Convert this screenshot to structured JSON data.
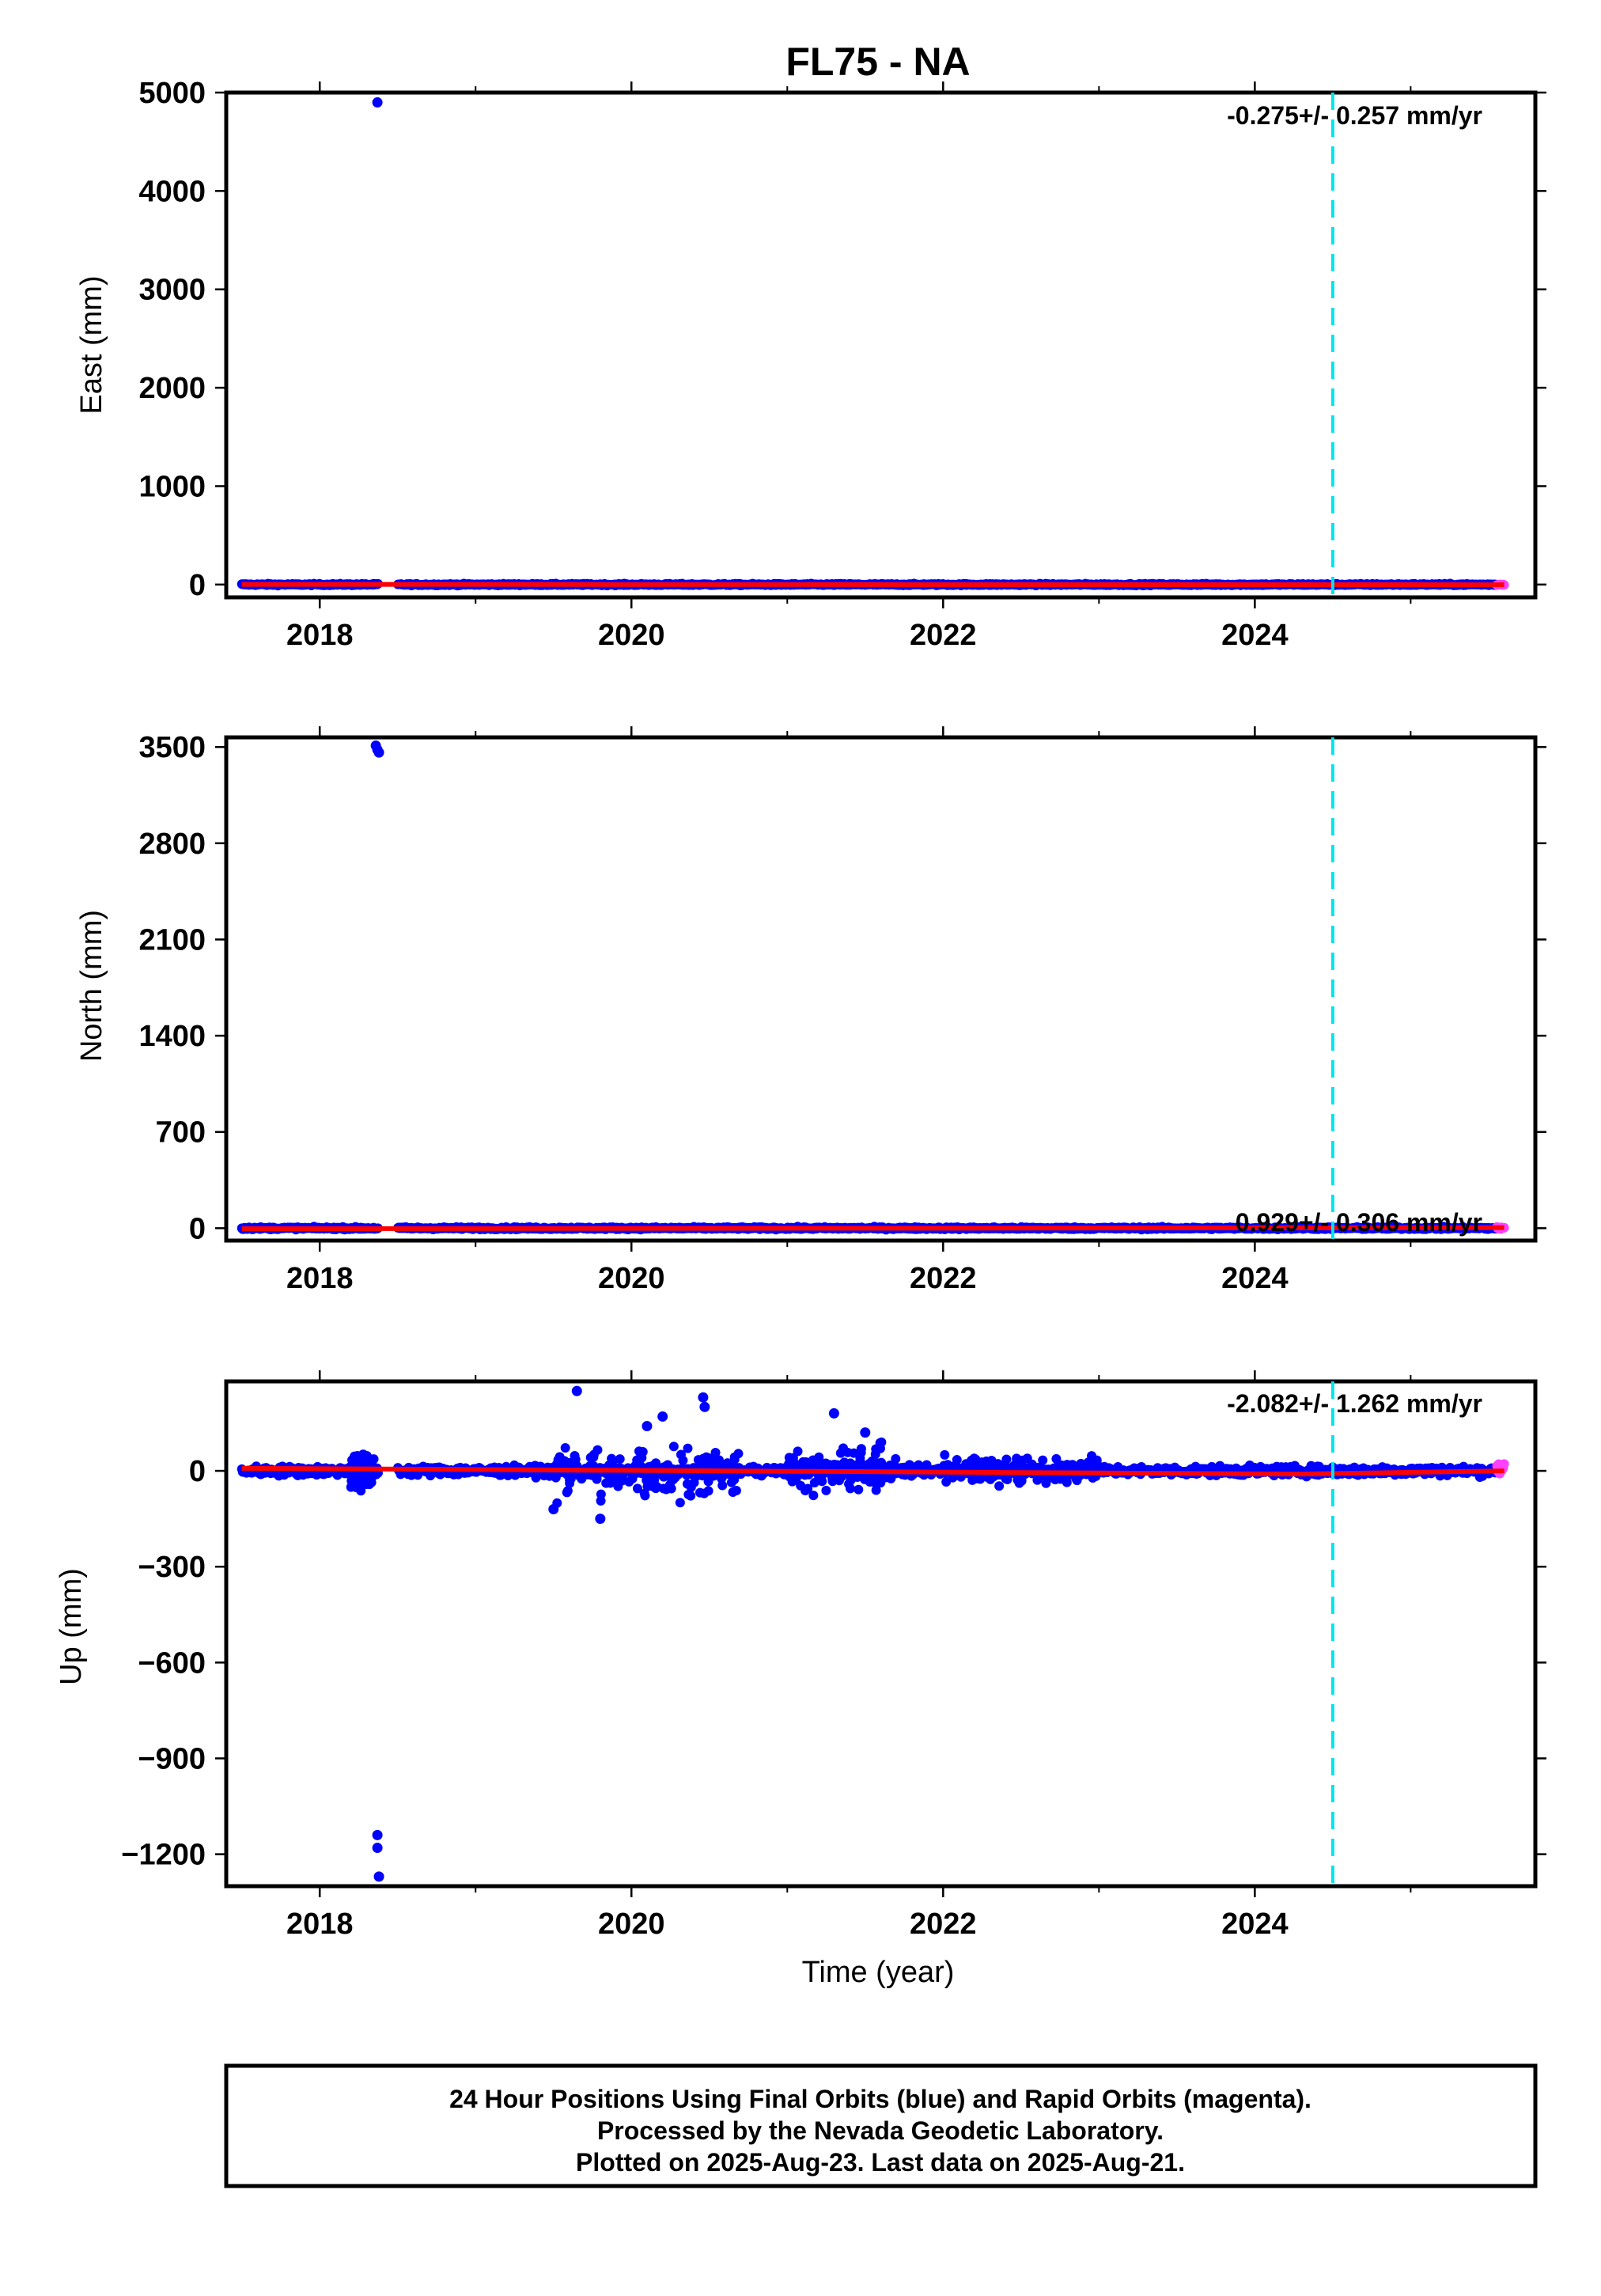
{
  "chart_data": [
    {
      "type": "scatter",
      "panel": "east",
      "title": "FL75 - NA",
      "ylabel": "East (mm)",
      "xlabel": "",
      "xlim": [
        2017.4,
        2025.8
      ],
      "ylim": [
        -130,
        5000
      ],
      "x_ticks": [
        2018,
        2020,
        2022,
        2024
      ],
      "y_ticks": [
        0,
        1000,
        2000,
        3000,
        4000,
        5000
      ],
      "rate_label": "-0.275+/- 0.257 mm/yr",
      "rate_position": "top-right",
      "reference_line_x": 2024.5,
      "outliers": [
        {
          "x": 2018.37,
          "y": 4900
        }
      ],
      "baseline": {
        "x_start": 2017.5,
        "x_end": 2025.6,
        "y": 0,
        "noise": 6
      },
      "gap": [
        2018.38,
        2018.5
      ],
      "rapid_x_start": 2025.55,
      "trend": [
        {
          "x": 2017.5,
          "y": 2
        },
        {
          "x": 2025.6,
          "y": -2
        }
      ]
    },
    {
      "type": "scatter",
      "panel": "north",
      "title": "",
      "ylabel": "North (mm)",
      "xlabel": "",
      "xlim": [
        2017.4,
        2025.8
      ],
      "ylim": [
        -90,
        3570
      ],
      "x_ticks": [
        2018,
        2020,
        2022,
        2024
      ],
      "y_ticks": [
        0,
        700,
        1400,
        2100,
        2800,
        3500
      ],
      "rate_label": "0.929+/- 0.306 mm/yr",
      "rate_position": "bottom-right",
      "reference_line_x": 2024.5,
      "outliers": [
        {
          "x": 2018.36,
          "y": 3510
        },
        {
          "x": 2018.37,
          "y": 3480
        },
        {
          "x": 2018.38,
          "y": 3460
        }
      ],
      "baseline": {
        "x_start": 2017.5,
        "x_end": 2025.6,
        "y": 0,
        "noise": 6
      },
      "gap": [
        2018.38,
        2018.5
      ],
      "rapid_x_start": 2025.55,
      "trend": [
        {
          "x": 2017.5,
          "y": -4
        },
        {
          "x": 2025.6,
          "y": 4
        }
      ]
    },
    {
      "type": "scatter",
      "panel": "up",
      "title": "",
      "ylabel": "Up (mm)",
      "xlabel": "Time (year)",
      "xlim": [
        2017.4,
        2025.8
      ],
      "ylim": [
        -1300,
        280
      ],
      "x_ticks": [
        2018,
        2020,
        2022,
        2024
      ],
      "y_ticks": [
        -1200,
        -900,
        -600,
        -300,
        0
      ],
      "rate_label": "-2.082+/- 1.262 mm/yr",
      "rate_position": "top-right",
      "reference_line_x": 2024.5,
      "outliers": [
        {
          "x": 2018.37,
          "y": -1140
        },
        {
          "x": 2018.37,
          "y": -1180
        },
        {
          "x": 2018.38,
          "y": -1270
        },
        {
          "x": 2019.65,
          "y": 250
        },
        {
          "x": 2020.2,
          "y": 170
        },
        {
          "x": 2020.46,
          "y": 230
        },
        {
          "x": 2020.47,
          "y": 200
        },
        {
          "x": 2021.3,
          "y": 180
        },
        {
          "x": 2019.8,
          "y": -150
        },
        {
          "x": 2019.5,
          "y": -120
        },
        {
          "x": 2020.1,
          "y": 140
        },
        {
          "x": 2021.5,
          "y": 120
        }
      ],
      "baseline": {
        "x_start": 2017.5,
        "x_end": 2025.6,
        "y": 0,
        "noise": 10
      },
      "gap": [
        2018.38,
        2018.5
      ],
      "scatter_bursts": [
        {
          "x0": 2019.5,
          "x1": 2020.7,
          "spread": 60
        },
        {
          "x0": 2021.0,
          "x1": 2021.7,
          "spread": 50
        },
        {
          "x0": 2022.0,
          "x1": 2023.0,
          "spread": 30
        },
        {
          "x0": 2018.2,
          "x1": 2018.35,
          "spread": 40
        }
      ],
      "rapid_x_start": 2025.55,
      "rapid_offset": 25,
      "trend": [
        {
          "x": 2017.5,
          "y": 8
        },
        {
          "x": 2024.3,
          "y": -10
        },
        {
          "x": 2025.6,
          "y": 0
        }
      ]
    }
  ],
  "series": [
    {
      "name": "Final Orbits",
      "color": "#0000ff"
    },
    {
      "name": "Rapid Orbits",
      "color": "#ff40ff"
    },
    {
      "name": "trend",
      "color": "#ff0000"
    }
  ],
  "reference_line_color": "#00e5ee",
  "footer": {
    "line1": "24 Hour Positions Using Final Orbits (blue) and Rapid Orbits (magenta).",
    "line2": "Processed by the Nevada Geodetic Laboratory.",
    "line3": "Plotted on 2025-Aug-23. Last data on 2025-Aug-21."
  }
}
